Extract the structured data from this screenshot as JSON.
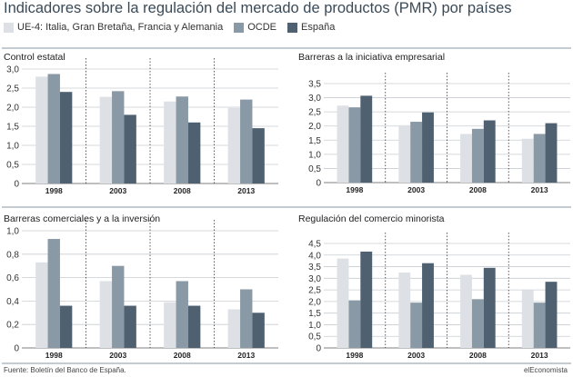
{
  "title": "Indicadores sobre la regulación del mercado de productos (PMR) por países",
  "legend": [
    {
      "name": "UE-4: Italia, Gran Bretaña, Francia y Alemania",
      "color": "#dde1e5"
    },
    {
      "name": "OCDE",
      "color": "#8a99a6"
    },
    {
      "name": "España",
      "color": "#4f6070"
    }
  ],
  "footer": {
    "source": "Fuente: Boletín del Banco de España.",
    "brand": "elEconomista"
  },
  "chart_data": [
    {
      "type": "bar",
      "title": "Control estatal",
      "categories": [
        "1998",
        "2003",
        "2008",
        "2013"
      ],
      "series": [
        {
          "name": "UE-4: Italia, Gran Bretaña, Francia y Alemania",
          "values": [
            2.8,
            2.27,
            2.15,
            1.98
          ]
        },
        {
          "name": "OCDE",
          "values": [
            2.87,
            2.42,
            2.28,
            2.2
          ]
        },
        {
          "name": "España",
          "values": [
            2.4,
            1.8,
            1.6,
            1.45
          ]
        }
      ],
      "ylim": [
        0,
        3.0
      ],
      "yticks": [
        "0",
        "0,5",
        "1,0",
        "1,5",
        "2,0",
        "2,5",
        "3,0"
      ],
      "ytick_values": [
        0,
        0.5,
        1.0,
        1.5,
        2.0,
        2.5,
        3.0
      ],
      "grid": true
    },
    {
      "type": "bar",
      "title": "Barreras a la iniciativa empresarial",
      "categories": [
        "1998",
        "2003",
        "2008",
        "2013"
      ],
      "series": [
        {
          "name": "UE-4: Italia, Gran Bretaña, Francia y Alemania",
          "values": [
            2.72,
            2.03,
            1.72,
            1.55
          ]
        },
        {
          "name": "OCDE",
          "values": [
            2.66,
            2.15,
            1.9,
            1.72
          ]
        },
        {
          "name": "España",
          "values": [
            3.07,
            2.48,
            2.2,
            2.1
          ]
        }
      ],
      "ylim": [
        0,
        3.5
      ],
      "yticks": [
        "0",
        "0,5",
        "1,0",
        "1,5",
        "2,0",
        "2,5",
        "3,0",
        "3,5"
      ],
      "ytick_values": [
        0,
        0.5,
        1.0,
        1.5,
        2.0,
        2.5,
        3.0,
        3.5
      ],
      "grid": true
    },
    {
      "type": "bar",
      "title": "Barreras comerciales y a la inversión",
      "categories": [
        "1998",
        "2003",
        "2008",
        "2013"
      ],
      "series": [
        {
          "name": "UE-4: Italia, Gran Bretaña, Francia y Alemania",
          "values": [
            0.73,
            0.57,
            0.39,
            0.33
          ]
        },
        {
          "name": "OCDE",
          "values": [
            0.93,
            0.7,
            0.57,
            0.5
          ]
        },
        {
          "name": "España",
          "values": [
            0.36,
            0.36,
            0.36,
            0.3
          ]
        }
      ],
      "ylim": [
        0,
        1.0
      ],
      "yticks": [
        "0",
        "0,2",
        "0,4",
        "0,6",
        "0,8",
        "1,0"
      ],
      "ytick_values": [
        0,
        0.2,
        0.4,
        0.6,
        0.8,
        1.0
      ],
      "grid": true
    },
    {
      "type": "bar",
      "title": "Regulación del comercio minorista",
      "categories": [
        "1998",
        "2003",
        "2008",
        "2013"
      ],
      "series": [
        {
          "name": "UE-4: Italia, Gran Bretaña, Francia y Alemania",
          "values": [
            3.85,
            3.25,
            3.15,
            2.5
          ]
        },
        {
          "name": "OCDE",
          "values": [
            2.05,
            1.95,
            2.1,
            1.95
          ]
        },
        {
          "name": "España",
          "values": [
            4.15,
            3.65,
            3.45,
            2.85
          ]
        }
      ],
      "ylim": [
        0,
        4.5
      ],
      "yticks": [
        "0",
        "0,5",
        "1,0",
        "1,5",
        "2,0",
        "2,5",
        "3,0",
        "3,5",
        "4,0",
        "4,5"
      ],
      "ytick_values": [
        0,
        0.5,
        1.0,
        1.5,
        2.0,
        2.5,
        3.0,
        3.5,
        4.0,
        4.5
      ],
      "grid": true
    }
  ]
}
